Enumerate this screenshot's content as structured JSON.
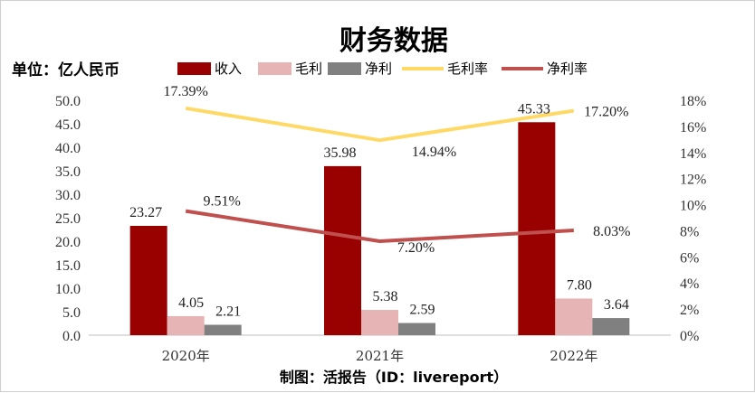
{
  "chart_data": {
    "type": "bar",
    "title": "财务数据",
    "unit_label": "单位：亿人民币",
    "source": "制图：活报告（ID：livereport）",
    "categories": [
      "2020年",
      "2021年",
      "2022年"
    ],
    "series": [
      {
        "name": "收入",
        "type": "bar",
        "axis": "left",
        "color": "#990000",
        "values": [
          23.27,
          35.98,
          45.33
        ],
        "labels": [
          "23.27",
          "35.98",
          "45.33"
        ]
      },
      {
        "name": "毛利",
        "type": "bar",
        "axis": "left",
        "color": "#e6b4b4",
        "values": [
          4.05,
          5.38,
          7.8
        ],
        "labels": [
          "4.05",
          "5.38",
          "7.80"
        ]
      },
      {
        "name": "净利",
        "type": "bar",
        "axis": "left",
        "color": "#808080",
        "values": [
          2.21,
          2.59,
          3.64
        ],
        "labels": [
          "2.21",
          "2.59",
          "3.64"
        ]
      },
      {
        "name": "毛利率",
        "type": "line",
        "axis": "right",
        "color": "#ffd966",
        "values": [
          17.39,
          14.94,
          17.2
        ],
        "labels": [
          "17.39%",
          "14.94%",
          "17.20%"
        ]
      },
      {
        "name": "净利率",
        "type": "line",
        "axis": "right",
        "color": "#c0504d",
        "values": [
          9.51,
          7.2,
          8.03
        ],
        "labels": [
          "9.51%",
          "7.20%",
          "8.03%"
        ]
      }
    ],
    "y_left": {
      "min": 0,
      "max": 50,
      "step": 5,
      "ticks": [
        "0.0",
        "5.0",
        "10.0",
        "15.0",
        "20.0",
        "25.0",
        "30.0",
        "35.0",
        "40.0",
        "45.0",
        "50.0"
      ]
    },
    "y_right": {
      "min": 0,
      "max": 18,
      "step": 2,
      "ticks": [
        "0%",
        "2%",
        "4%",
        "6%",
        "8%",
        "10%",
        "12%",
        "14%",
        "16%",
        "18%"
      ]
    },
    "legend_position": "top",
    "grid": false
  }
}
